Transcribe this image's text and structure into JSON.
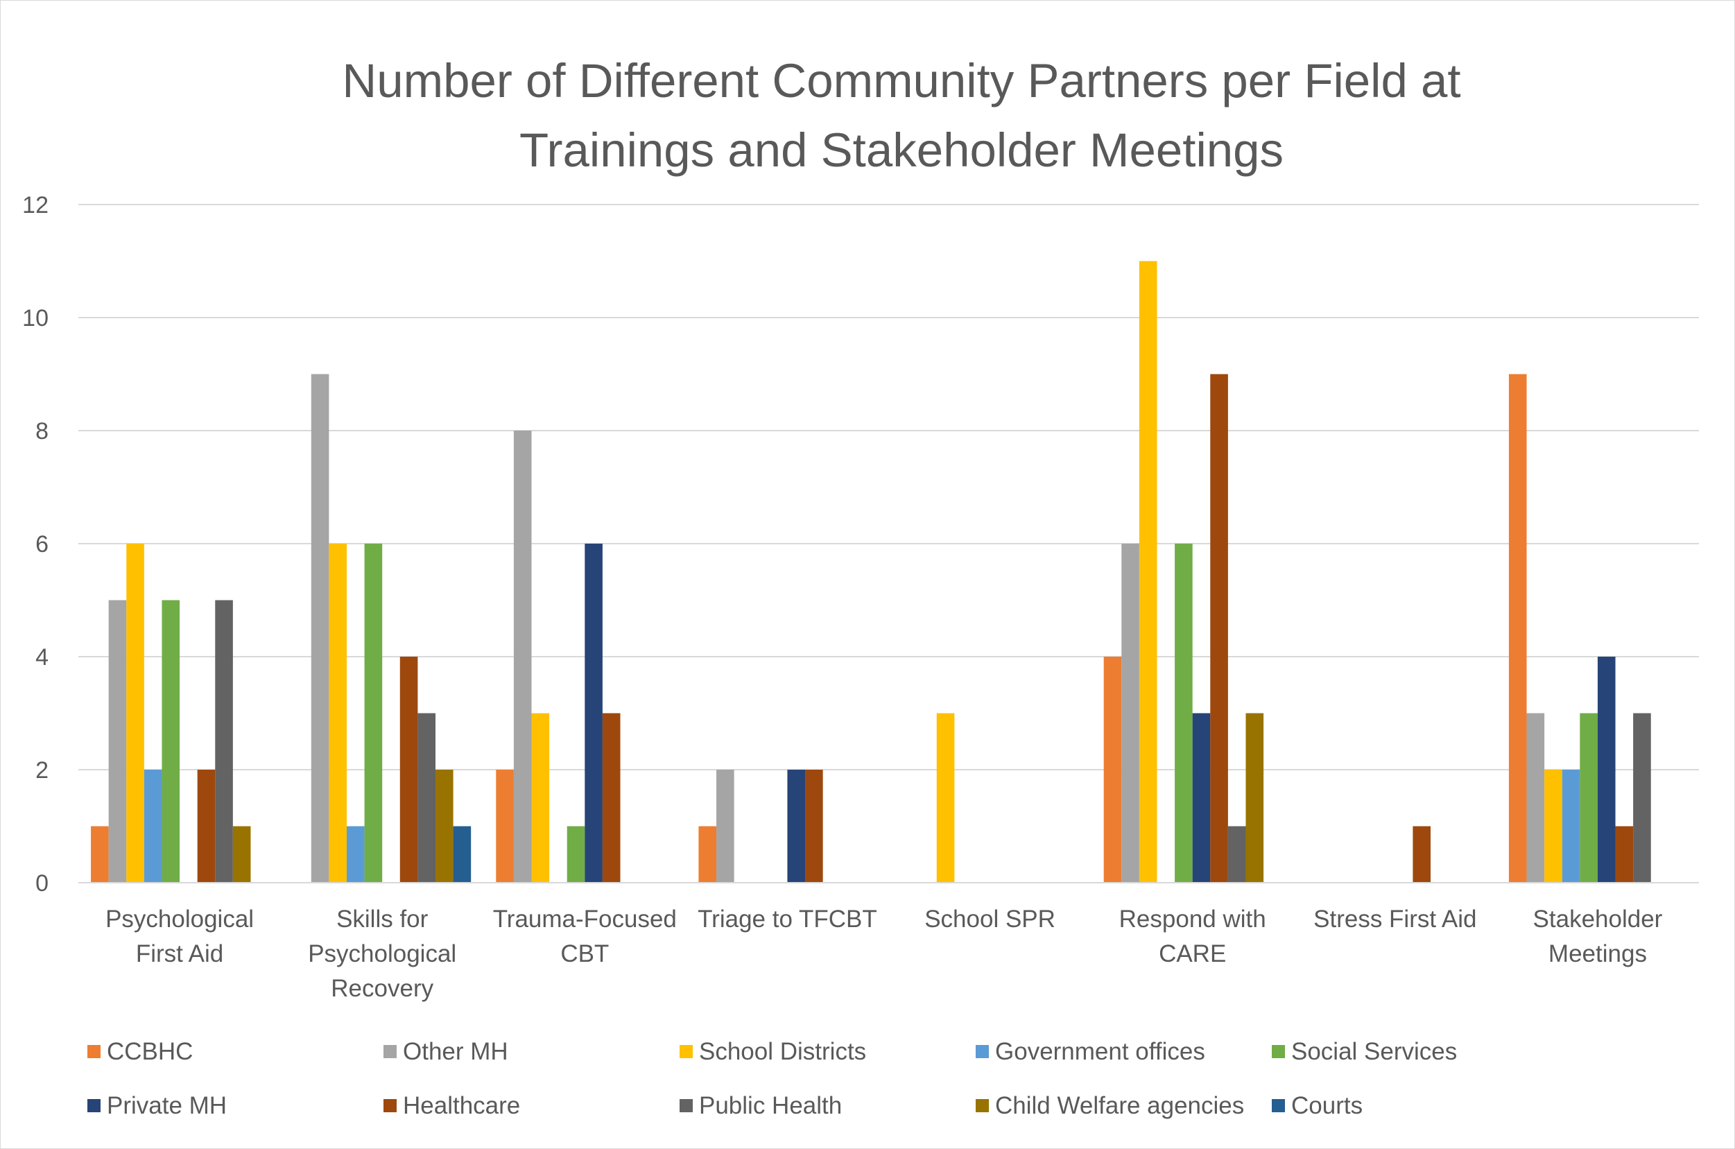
{
  "chart_data": {
    "type": "bar",
    "title_lines": [
      "Number of Different Community Partners per Field at",
      "Trainings and Stakeholder Meetings"
    ],
    "xlabel": "",
    "ylabel": "",
    "ylim": [
      0,
      12
    ],
    "yticks": [
      "0",
      "2",
      "4",
      "6",
      "8",
      "10",
      "12"
    ],
    "grid": true,
    "legend_position": "bottom",
    "categories": [
      [
        "Psychological",
        "First Aid"
      ],
      [
        "Skills for",
        "Psychological",
        "Recovery"
      ],
      [
        "Trauma-Focused",
        "CBT"
      ],
      [
        "Triage to TFCBT"
      ],
      [
        "School SPR"
      ],
      [
        "Respond with",
        "CARE"
      ],
      [
        "Stress First Aid"
      ],
      [
        "Stakeholder",
        "Meetings"
      ]
    ],
    "series": [
      {
        "name": "CCBHC",
        "color": "#ED7D31",
        "values": [
          1,
          0,
          2,
          1,
          0,
          4,
          0,
          9
        ]
      },
      {
        "name": "Other MH",
        "color": "#A5A5A5",
        "values": [
          5,
          9,
          8,
          2,
          0,
          6,
          0,
          3
        ]
      },
      {
        "name": "School Districts",
        "color": "#FFC000",
        "values": [
          6,
          6,
          3,
          0,
          3,
          11,
          0,
          2
        ]
      },
      {
        "name": "Government offices",
        "color": "#5B9BD5",
        "values": [
          2,
          1,
          0,
          0,
          0,
          0,
          0,
          2
        ]
      },
      {
        "name": "Social Services",
        "color": "#70AD47",
        "values": [
          5,
          6,
          1,
          0,
          0,
          6,
          0,
          3
        ]
      },
      {
        "name": "Private MH",
        "color": "#264478",
        "values": [
          0,
          0,
          6,
          2,
          0,
          3,
          0,
          4
        ]
      },
      {
        "name": "Healthcare",
        "color": "#9E480E",
        "values": [
          2,
          4,
          3,
          2,
          0,
          9,
          1,
          1
        ]
      },
      {
        "name": "Public Health",
        "color": "#636363",
        "values": [
          5,
          3,
          0,
          0,
          0,
          1,
          0,
          3
        ]
      },
      {
        "name": "Child Welfare agencies",
        "color": "#997300",
        "values": [
          1,
          2,
          0,
          0,
          0,
          3,
          0,
          0
        ]
      },
      {
        "name": "Courts",
        "color": "#255E91",
        "values": [
          0,
          1,
          0,
          0,
          0,
          0,
          0,
          0
        ]
      }
    ]
  }
}
